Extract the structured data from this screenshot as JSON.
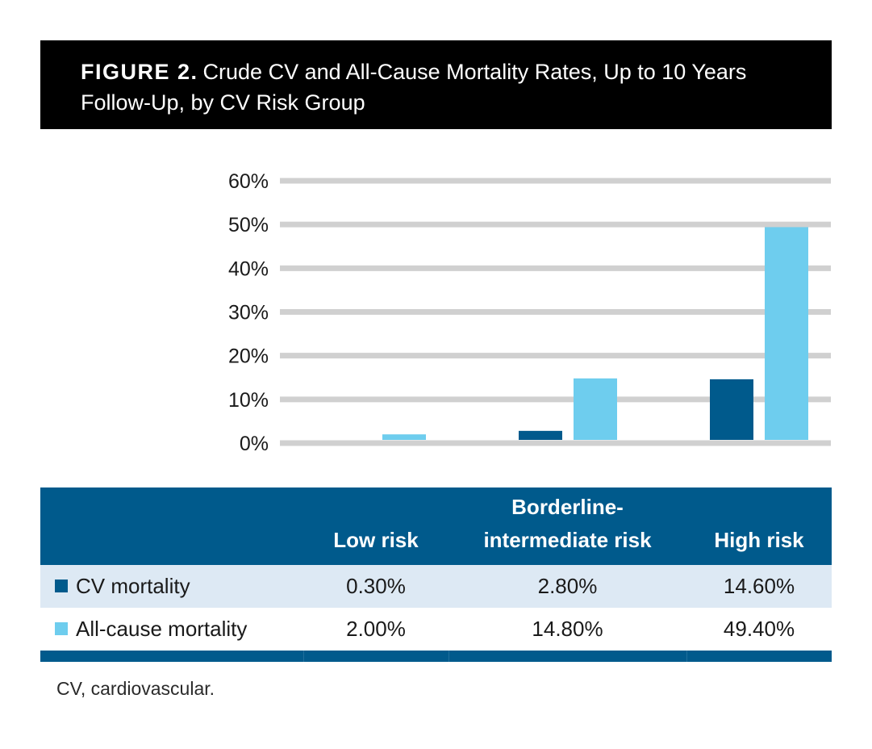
{
  "figure": {
    "label": "FIGURE 2.",
    "title": "Crude CV and All-Cause Mortality Rates, Up to 10 Years Follow-Up, by CV Risk Group"
  },
  "chart_data": {
    "type": "bar",
    "categories": [
      "Low risk",
      "Borderline-intermediate risk",
      "High risk"
    ],
    "series": [
      {
        "name": "CV mortality",
        "values": [
          0.3,
          2.8,
          14.6
        ],
        "color": "#005a8c"
      },
      {
        "name": "All-cause mortality",
        "values": [
          2.0,
          14.8,
          49.4
        ],
        "color": "#6ecdee"
      }
    ],
    "ylim": [
      0,
      60
    ],
    "yticks": [
      "0%",
      "10%",
      "20%",
      "30%",
      "40%",
      "50%",
      "60%"
    ],
    "grid": true,
    "gridColor": "#d0d0d0"
  },
  "table": {
    "headers": [
      "",
      "Low risk",
      "Borderline-\nintermediate risk",
      "High risk"
    ],
    "rows": [
      {
        "label": "CV mortality",
        "values": [
          "0.30%",
          "2.80%",
          "14.60%"
        ]
      },
      {
        "label": "All-cause mortality",
        "values": [
          "2.00%",
          "14.80%",
          "49.40%"
        ]
      }
    ]
  },
  "footnote": "CV, cardiovascular.",
  "colors": {
    "header_bg": "#000000",
    "table_header_bg": "#005a8c",
    "row_shade": "#dde9f4"
  }
}
